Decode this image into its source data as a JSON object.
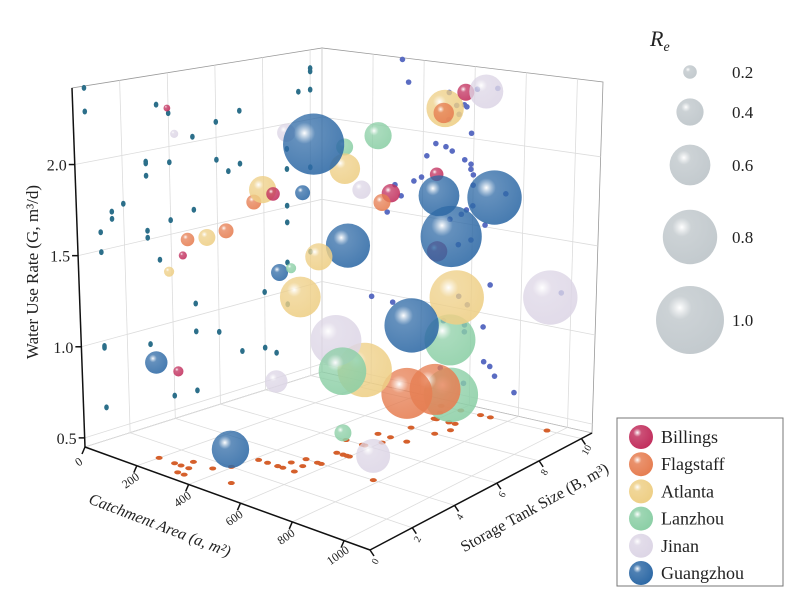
{
  "chart_data": {
    "type": "scatter",
    "subtype": "3d-bubble",
    "x_axis": {
      "label": "Catchment Area (a, m²)",
      "ticks": [
        0,
        200,
        400,
        600,
        800,
        1000
      ],
      "range": [
        0,
        1100
      ]
    },
    "y_axis": {
      "label": "Storage Tank Size (B, m³)",
      "ticks": [
        0,
        2,
        4,
        6,
        8,
        10
      ],
      "range": [
        0,
        10.5
      ]
    },
    "z_axis": {
      "label": "Water Use Rate (G, m³/d)",
      "ticks": [
        0.5,
        1.0,
        1.5,
        2.0
      ],
      "range": [
        0.45,
        2.42
      ]
    },
    "size_legend": {
      "title": "R",
      "title_sub": "e",
      "values": [
        0.2,
        0.4,
        0.6,
        0.8,
        1.0
      ],
      "labels": [
        "0.2",
        "0.4",
        "0.6",
        "0.8",
        "1.0"
      ],
      "color": "#c3cace"
    },
    "grid": true,
    "wall_projections": true,
    "projection_colors": {
      "left_wall": "#2c6f8a",
      "back_wall": "#5a6cc2",
      "floor": "#d5602c"
    },
    "legend_position": "bottom-right",
    "series": [
      {
        "name": "Billings",
        "color": "#c2305e",
        "points": [
          {
            "a": 610,
            "B": 10,
            "G": 2.29,
            "Re": 0.25
          },
          {
            "a": 590,
            "B": 7,
            "G": 1.82,
            "Re": 0.27
          },
          {
            "a": 590,
            "B": 9,
            "G": 1.85,
            "Re": 0.2
          },
          {
            "a": 595,
            "B": 9,
            "G": 1.41,
            "Re": 0.3
          },
          {
            "a": 285,
            "B": 1,
            "G": 0.96,
            "Re": 0.15
          },
          {
            "a": 490,
            "B": 3,
            "G": 1.93,
            "Re": 0.2
          },
          {
            "a": 315,
            "B": 1,
            "G": 1.6,
            "Re": 0.12
          },
          {
            "a": 315,
            "B": 0.5,
            "G": 2.41,
            "Re": 0.1
          }
        ]
      },
      {
        "name": "Flagstaff",
        "color": "#e67e52",
        "points": [
          {
            "a": 570,
            "B": 9.5,
            "G": 2.18,
            "Re": 0.3
          },
          {
            "a": 600,
            "B": 6.5,
            "G": 1.79,
            "Re": 0.25
          },
          {
            "a": 655,
            "B": 7,
            "G": 0.72,
            "Re": 0.75
          },
          {
            "a": 680,
            "B": 8,
            "G": 0.7,
            "Re": 0.75
          },
          {
            "a": 415,
            "B": 3,
            "G": 1.86,
            "Re": 0.22
          },
          {
            "a": 290,
            "B": 1.5,
            "G": 1.66,
            "Re": 0.2
          },
          {
            "a": 395,
            "B": 2,
            "G": 1.73,
            "Re": 0.22
          }
        ]
      },
      {
        "name": "Atlanta",
        "color": "#eecf86",
        "points": [
          {
            "a": 590,
            "B": 5,
            "G": 2.03,
            "Re": 0.45
          },
          {
            "a": 530,
            "B": 10,
            "G": 2.18,
            "Re": 0.55
          },
          {
            "a": 575,
            "B": 4,
            "G": 1.58,
            "Re": 0.4
          },
          {
            "a": 545,
            "B": 3.5,
            "G": 1.37,
            "Re": 0.6
          },
          {
            "a": 675,
            "B": 9,
            "G": 1.17,
            "Re": 0.8
          },
          {
            "a": 575,
            "B": 6,
            "G": 0.87,
            "Re": 0.8
          },
          {
            "a": 450,
            "B": 3,
            "G": 1.94,
            "Re": 0.4
          },
          {
            "a": 365,
            "B": 1.5,
            "G": 1.7,
            "Re": 0.25
          },
          {
            "a": 260,
            "B": 1,
            "G": 1.49,
            "Re": 0.15
          }
        ]
      },
      {
        "name": "Lanzhou",
        "color": "#8ccfa6",
        "points": [
          {
            "a": 500,
            "B": 6,
            "G": 2.09,
            "Re": 0.25
          },
          {
            "a": 540,
            "B": 7,
            "G": 2.13,
            "Re": 0.4
          },
          {
            "a": 555,
            "B": 3,
            "G": 1.55,
            "Re": 0.15
          },
          {
            "a": 650,
            "B": 9,
            "G": 0.92,
            "Re": 0.75
          },
          {
            "a": 575,
            "B": 5,
            "G": 0.91,
            "Re": 0.7
          },
          {
            "a": 700,
            "B": 8.5,
            "G": 0.65,
            "Re": 0.8
          },
          {
            "a": 575,
            "B": 5,
            "G": 0.57,
            "Re": 0.25
          }
        ]
      },
      {
        "name": "Jinan",
        "color": "#ddd6e6",
        "points": [
          {
            "a": 690,
            "B": 10,
            "G": 2.31,
            "Re": 0.5
          },
          {
            "a": 565,
            "B": 6,
            "G": 1.87,
            "Re": 0.27
          },
          {
            "a": 960,
            "B": 10,
            "G": 1.2,
            "Re": 0.8
          },
          {
            "a": 550,
            "B": 5,
            "G": 1.07,
            "Re": 0.75
          },
          {
            "a": 490,
            "B": 3,
            "G": 0.91,
            "Re": 0.33
          },
          {
            "a": 780,
            "B": 4,
            "G": 0.58,
            "Re": 0.5
          },
          {
            "a": 500,
            "B": 3.5,
            "G": 2.25,
            "Re": 0.27
          },
          {
            "a": 340,
            "B": 0.5,
            "G": 2.28,
            "Re": 0.12
          }
        ]
      },
      {
        "name": "Guangzhou",
        "color": "#2f6aa6",
        "points": [
          {
            "a": 560,
            "B": 4,
            "G": 2.19,
            "Re": 0.9
          },
          {
            "a": 600,
            "B": 9,
            "G": 1.73,
            "Re": 0.6
          },
          {
            "a": 730,
            "B": 10,
            "G": 1.71,
            "Re": 0.8
          },
          {
            "a": 650,
            "B": 9,
            "G": 1.51,
            "Re": 0.9
          },
          {
            "a": 600,
            "B": 5,
            "G": 1.61,
            "Re": 0.65
          },
          {
            "a": 510,
            "B": 3,
            "G": 1.51,
            "Re": 0.25
          },
          {
            "a": 585,
            "B": 8,
            "G": 1.03,
            "Re": 0.8
          },
          {
            "a": 200,
            "B": 1,
            "G": 0.97,
            "Re": 0.33
          },
          {
            "a": 480,
            "B": 1,
            "G": 0.63,
            "Re": 0.55
          },
          {
            "a": 515,
            "B": 4,
            "G": 1.91,
            "Re": 0.22
          }
        ]
      }
    ]
  }
}
